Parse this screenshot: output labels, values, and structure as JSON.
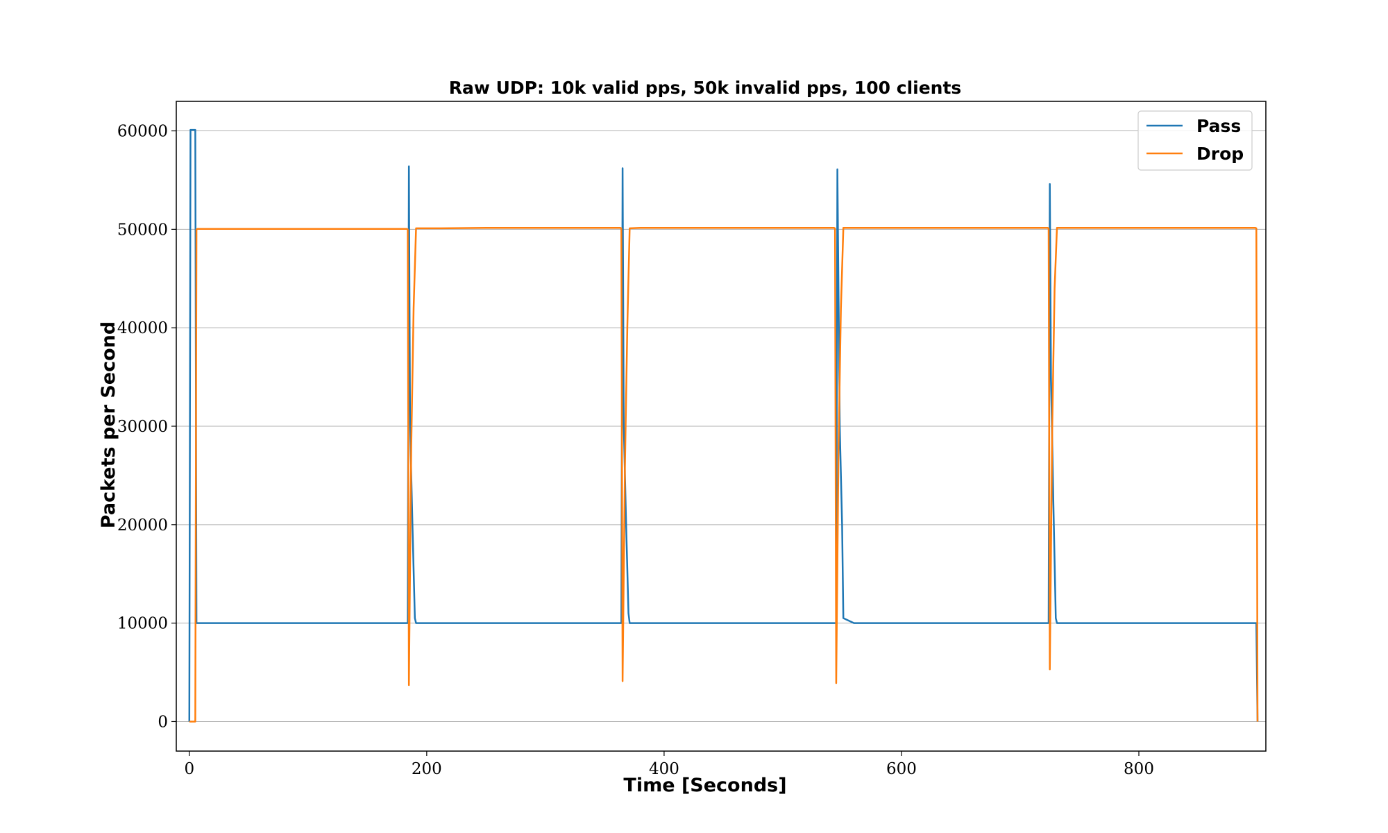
{
  "chart_data": {
    "type": "line",
    "title": "Raw UDP: 10k valid pps, 50k invalid pps, 100 clients",
    "xlabel": "Time [Seconds]",
    "ylabel": "Packets per Second",
    "xlim": [
      -11,
      907
    ],
    "ylim": [
      -3000,
      63000
    ],
    "xticks": [
      0,
      200,
      400,
      600,
      800
    ],
    "yticks": [
      0,
      10000,
      20000,
      30000,
      40000,
      50000,
      60000
    ],
    "xtick_labels": [
      "0",
      "200",
      "400",
      "600",
      "800"
    ],
    "ytick_labels": [
      "0",
      "10000",
      "20000",
      "30000",
      "40000",
      "50000",
      "60000"
    ],
    "grid": "horizontal",
    "legend_position": "top-right",
    "series": [
      {
        "name": "Pass",
        "color": "#1f77b4",
        "x": [
          0,
          1,
          3,
          5,
          6,
          7,
          50,
          100,
          150,
          184,
          185,
          186,
          188,
          190,
          191,
          200,
          250,
          300,
          350,
          364,
          365,
          366,
          368,
          370,
          371,
          380,
          450,
          500,
          544,
          545,
          546,
          548,
          550,
          551,
          560,
          650,
          700,
          724,
          725,
          726,
          728,
          730,
          731,
          740,
          800,
          850,
          898,
          899,
          900
        ],
        "y": [
          0,
          60100,
          60100,
          60100,
          10000,
          10000,
          10000,
          10000,
          10000,
          10000,
          56400,
          30000,
          20000,
          10500,
          10000,
          10000,
          10000,
          10000,
          10000,
          10000,
          56200,
          30000,
          20000,
          11000,
          10000,
          10000,
          10000,
          10000,
          10000,
          10000,
          56100,
          30000,
          20000,
          10500,
          10000,
          10000,
          10000,
          10000,
          54600,
          35000,
          22000,
          10500,
          10000,
          10000,
          10000,
          10000,
          10000,
          10000,
          0
        ]
      },
      {
        "name": "Drop",
        "color": "#ff7f0e",
        "x": [
          0,
          5,
          6,
          7,
          50,
          100,
          150,
          183,
          184,
          185,
          187,
          189,
          191,
          200,
          210,
          250,
          300,
          350,
          363,
          364,
          365,
          367,
          369,
          371,
          380,
          450,
          500,
          543,
          544,
          545,
          547,
          549,
          551,
          560,
          650,
          700,
          723,
          724,
          725,
          727,
          729,
          731,
          740,
          800,
          850,
          898,
          899,
          900
        ],
        "y": [
          0,
          0,
          50000,
          50050,
          50050,
          50050,
          50050,
          50050,
          50000,
          3700,
          28000,
          42000,
          50100,
          50100,
          50100,
          50150,
          50150,
          50150,
          50150,
          50100,
          4100,
          26000,
          40000,
          50100,
          50150,
          50150,
          50150,
          50150,
          50100,
          3900,
          28000,
          42000,
          50150,
          50150,
          50150,
          50150,
          50150,
          50100,
          5300,
          30000,
          44000,
          50150,
          50150,
          50150,
          50150,
          50150,
          50100,
          0
        ]
      }
    ]
  }
}
